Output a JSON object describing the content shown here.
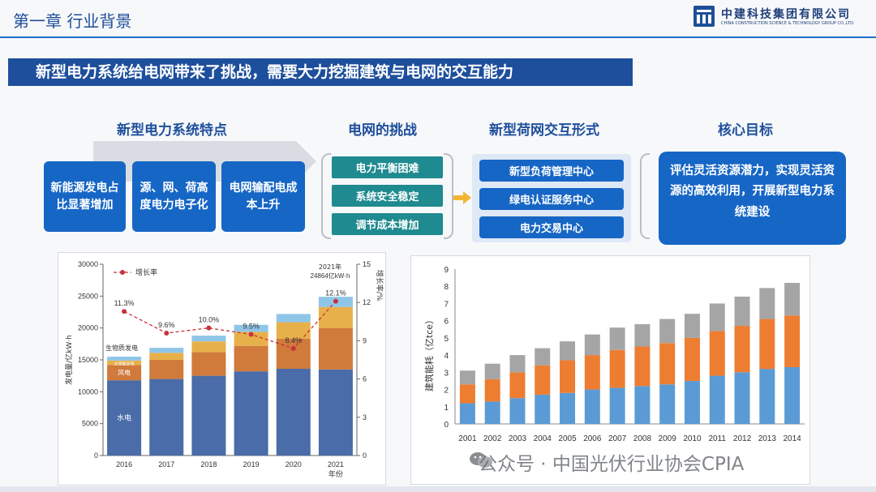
{
  "header": {
    "chapter_title": "第一章 行业背景",
    "company_cn": "中建科技集团有限公司",
    "company_en": "CHINA CONSTRUCTION SCIENCE & TECHNOLOGY GROUP CO.,LTD."
  },
  "banner": "新型电力系统给电网带来了挑战，需要大力挖掘建筑与电网的交互能力",
  "sections": {
    "features_title": "新型电力系统特点",
    "challenges_title": "电网的挑战",
    "interaction_title": "新型荷网交互形式",
    "goal_title": "核心目标"
  },
  "features": [
    "新能源发电占比显著增加",
    "源、网、荷高度电力电子化",
    "电网输配电成本上升"
  ],
  "challenges": [
    "电力平衡困难",
    "系统安全稳定",
    "调节成本增加"
  ],
  "interactions": [
    "新型负荷管理中心",
    "绿电认证服务中心",
    "电力交易中心"
  ],
  "goal": "评估灵活资源潜力，实现灵活资源的高效利用，开展新型电力系统建设",
  "colors": {
    "primary": "#1666c5",
    "banner": "#1e4f9c",
    "teal": "#1f8a8f",
    "hydro": "#4a6ca8",
    "wind": "#d07a3c",
    "solar": "#e8b04a",
    "bio": "#8fc6e8",
    "growth": "#c8323a",
    "energy_blue": "#5b9bd5",
    "energy_orange": "#ed7d31",
    "energy_gray": "#a5a5a5"
  },
  "watermark": "公众号 · 中国光伏行业协会CPIA",
  "chart_data": [
    {
      "type": "bar",
      "stacked": true,
      "categories": [
        "2016",
        "2017",
        "2018",
        "2019",
        "2020",
        "2021"
      ],
      "series": [
        {
          "name": "水电",
          "values": [
            11800,
            12000,
            12500,
            13200,
            13600,
            13500
          ]
        },
        {
          "name": "风电",
          "values": [
            2400,
            3000,
            3700,
            4000,
            4700,
            6500
          ]
        },
        {
          "name": "太阳能发电",
          "values": [
            700,
            1100,
            1700,
            2200,
            2600,
            3300
          ]
        },
        {
          "name": "生物质发电",
          "values": [
            600,
            800,
            900,
            1100,
            1300,
            1600
          ]
        }
      ],
      "line_series": {
        "name": "增长率",
        "values": [
          11.3,
          9.6,
          10.0,
          9.5,
          8.4,
          12.1
        ]
      },
      "point_labels": [
        "11.3%",
        "9.6%",
        "10.0%",
        "9.5%",
        "8.4%",
        "12.1%"
      ],
      "segment_labels": [
        "水电",
        "风电",
        "太阳能发电",
        "生物质发电"
      ],
      "ylabel": "发电量/亿kW·h",
      "y2label": "增长率/%",
      "xlabel": "年份",
      "ylim": [
        0,
        30000
      ],
      "yticks": [
        "0",
        "5000",
        "10000",
        "15000",
        "20000",
        "25000",
        "30000"
      ],
      "y2lim": [
        0,
        15
      ],
      "y2ticks": [
        "0",
        "3",
        "6",
        "9",
        "12",
        "15"
      ],
      "annotation_line1": "2021年",
      "annotation_line2": "24864亿kW·h"
    },
    {
      "type": "bar",
      "stacked": true,
      "categories": [
        "2001",
        "2002",
        "2003",
        "2004",
        "2005",
        "2006",
        "2007",
        "2008",
        "2009",
        "2010",
        "2011",
        "2012",
        "2013",
        "2014"
      ],
      "series": [
        {
          "name": "series-blue",
          "values": [
            1.2,
            1.3,
            1.5,
            1.7,
            1.8,
            2.0,
            2.1,
            2.2,
            2.3,
            2.5,
            2.8,
            3.0,
            3.2,
            3.3
          ]
        },
        {
          "name": "series-orange",
          "values": [
            1.1,
            1.3,
            1.5,
            1.7,
            1.9,
            2.0,
            2.2,
            2.3,
            2.4,
            2.5,
            2.6,
            2.7,
            2.9,
            3.0
          ]
        },
        {
          "name": "series-gray",
          "values": [
            0.8,
            0.9,
            1.0,
            1.0,
            1.1,
            1.2,
            1.3,
            1.3,
            1.4,
            1.4,
            1.6,
            1.7,
            1.8,
            1.9
          ]
        }
      ],
      "ylabel": "建筑能耗（亿tce）",
      "ylim": [
        0,
        9
      ],
      "yticks": [
        "0",
        "1",
        "2",
        "3",
        "4",
        "5",
        "6",
        "7",
        "8",
        "9"
      ]
    }
  ]
}
